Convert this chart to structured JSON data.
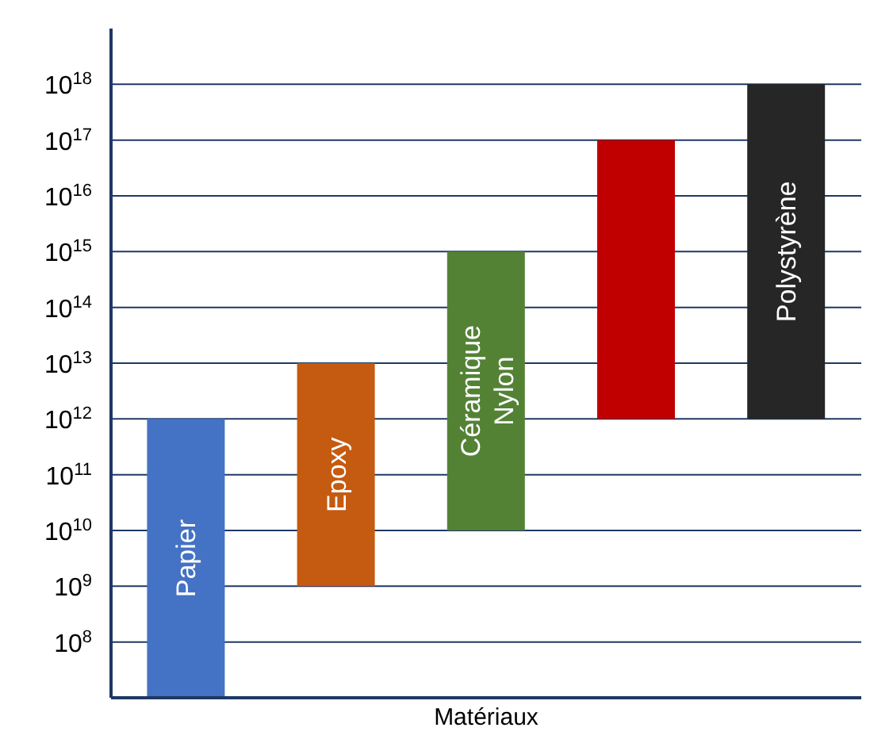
{
  "chart_data": {
    "type": "bar",
    "xlabel": "Matériaux",
    "categories": [
      "Papier",
      "Epoxy",
      "Céramique Nylon",
      null,
      "Polystyrène"
    ],
    "base": [
      10000000.0,
      1000000000.0,
      10000000000.0,
      1000000000000.0,
      1000000000000.0
    ],
    "values": [
      999990000000,
      9999000000000,
      999990000000000,
      99999000000000000,
      999999000000000000
    ],
    "colors": [
      "#4472c4",
      "#c55a11",
      "#548235",
      "#c00000",
      "#262626"
    ],
    "log": "y",
    "ylim": [
      10000000.0,
      1e+19
    ],
    "yticks": [
      {
        "value": 100000000.0,
        "label": "10$^{8}$"
      },
      {
        "value": 1000000000.0,
        "label": "10$^{9}$"
      },
      {
        "value": 10000000000.0,
        "label": "10$^{10}$"
      },
      {
        "value": 100000000000.0,
        "label": "10$^{11}$"
      },
      {
        "value": 1000000000000.0,
        "label": "10$^{12}$"
      },
      {
        "value": 10000000000000.0,
        "label": "10$^{13}$"
      },
      {
        "value": 100000000000000.0,
        "label": "10$^{14}$"
      },
      {
        "value": 1000000000000000.0,
        "label": "10$^{15}$"
      },
      {
        "value": 1e+16,
        "label": "10$^{16}$"
      },
      {
        "value": 1e+17,
        "label": "10$^{17}$"
      },
      {
        "value": 1e+18,
        "label": "10$^{18}$"
      }
    ],
    "grid": "y",
    "tick_labels": "y"
  }
}
